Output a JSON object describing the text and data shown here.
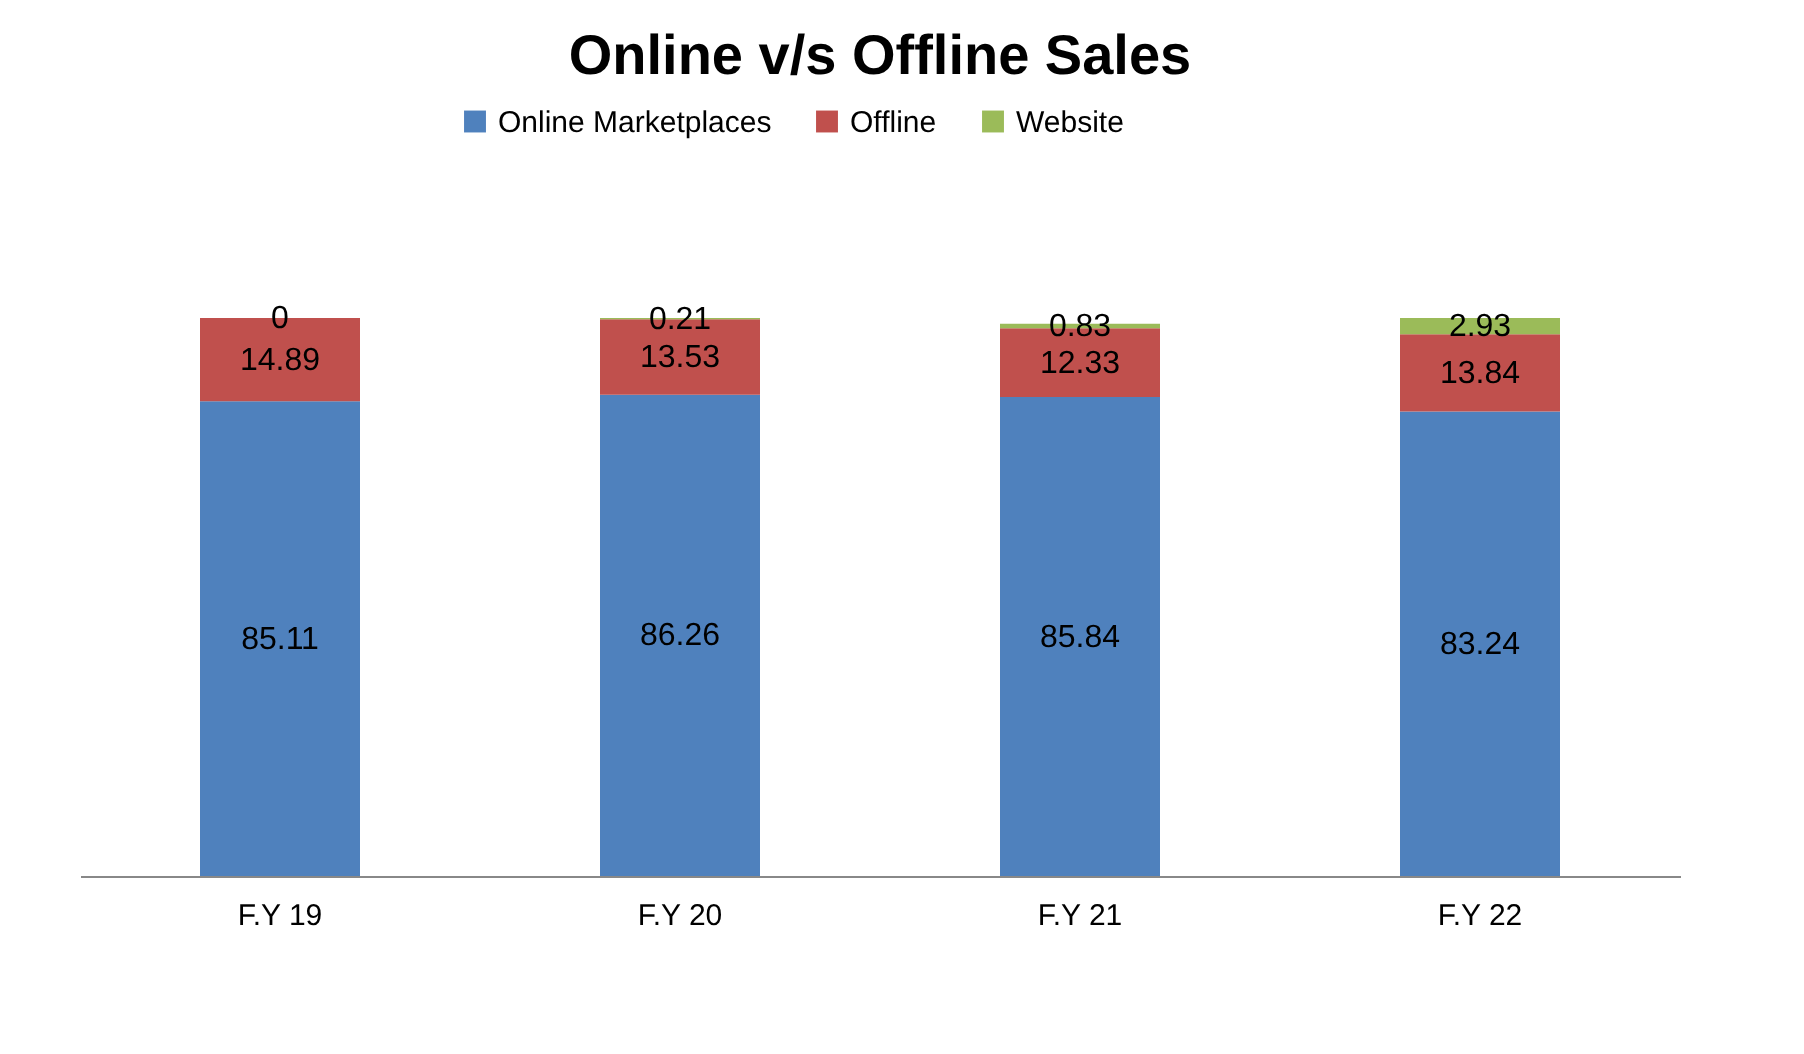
{
  "chart_data": {
    "type": "bar",
    "title": "Online v/s Offline Sales",
    "stacked": true,
    "data_labels": true,
    "legend": "top",
    "grid": false,
    "categories": [
      "F.Y 19",
      "F.Y 20",
      "F.Y 21",
      "F.Y 22"
    ],
    "series": [
      {
        "name": "Online Marketplaces",
        "color": "#4f81bd",
        "values": [
          85.11,
          86.26,
          85.84,
          83.24
        ]
      },
      {
        "name": "Offline",
        "color": "#c0504d",
        "values": [
          14.89,
          13.53,
          12.33,
          13.84
        ]
      },
      {
        "name": "Website",
        "color": "#9bbb59",
        "values": [
          0,
          0.21,
          0.83,
          2.93
        ]
      }
    ]
  }
}
